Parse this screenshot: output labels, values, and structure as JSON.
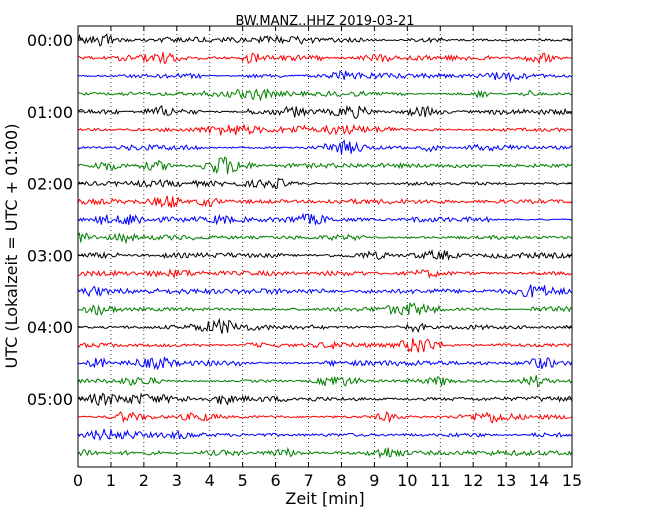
{
  "chart_data": {
    "type": "line",
    "title": "BW.MANZ..HHZ 2019-03-21",
    "xlabel": "Zeit  [min]",
    "ylabel": "UTC (Lokalzeit = UTC + 01:00)",
    "xlim": [
      0,
      15
    ],
    "xticks": [
      "0",
      "1",
      "2",
      "3",
      "4",
      "5",
      "6",
      "7",
      "8",
      "9",
      "10",
      "11",
      "12",
      "13",
      "14",
      "15"
    ],
    "yticks": [
      "00:00",
      "01:00",
      "02:00",
      "03:00",
      "04:00",
      "05:00"
    ],
    "trace_minutes": 15,
    "trace_count": 24,
    "trace_colors": [
      "#000000",
      "#ff0000",
      "#0000ff",
      "#008000"
    ],
    "grid": "vertical dotted at each minute"
  }
}
